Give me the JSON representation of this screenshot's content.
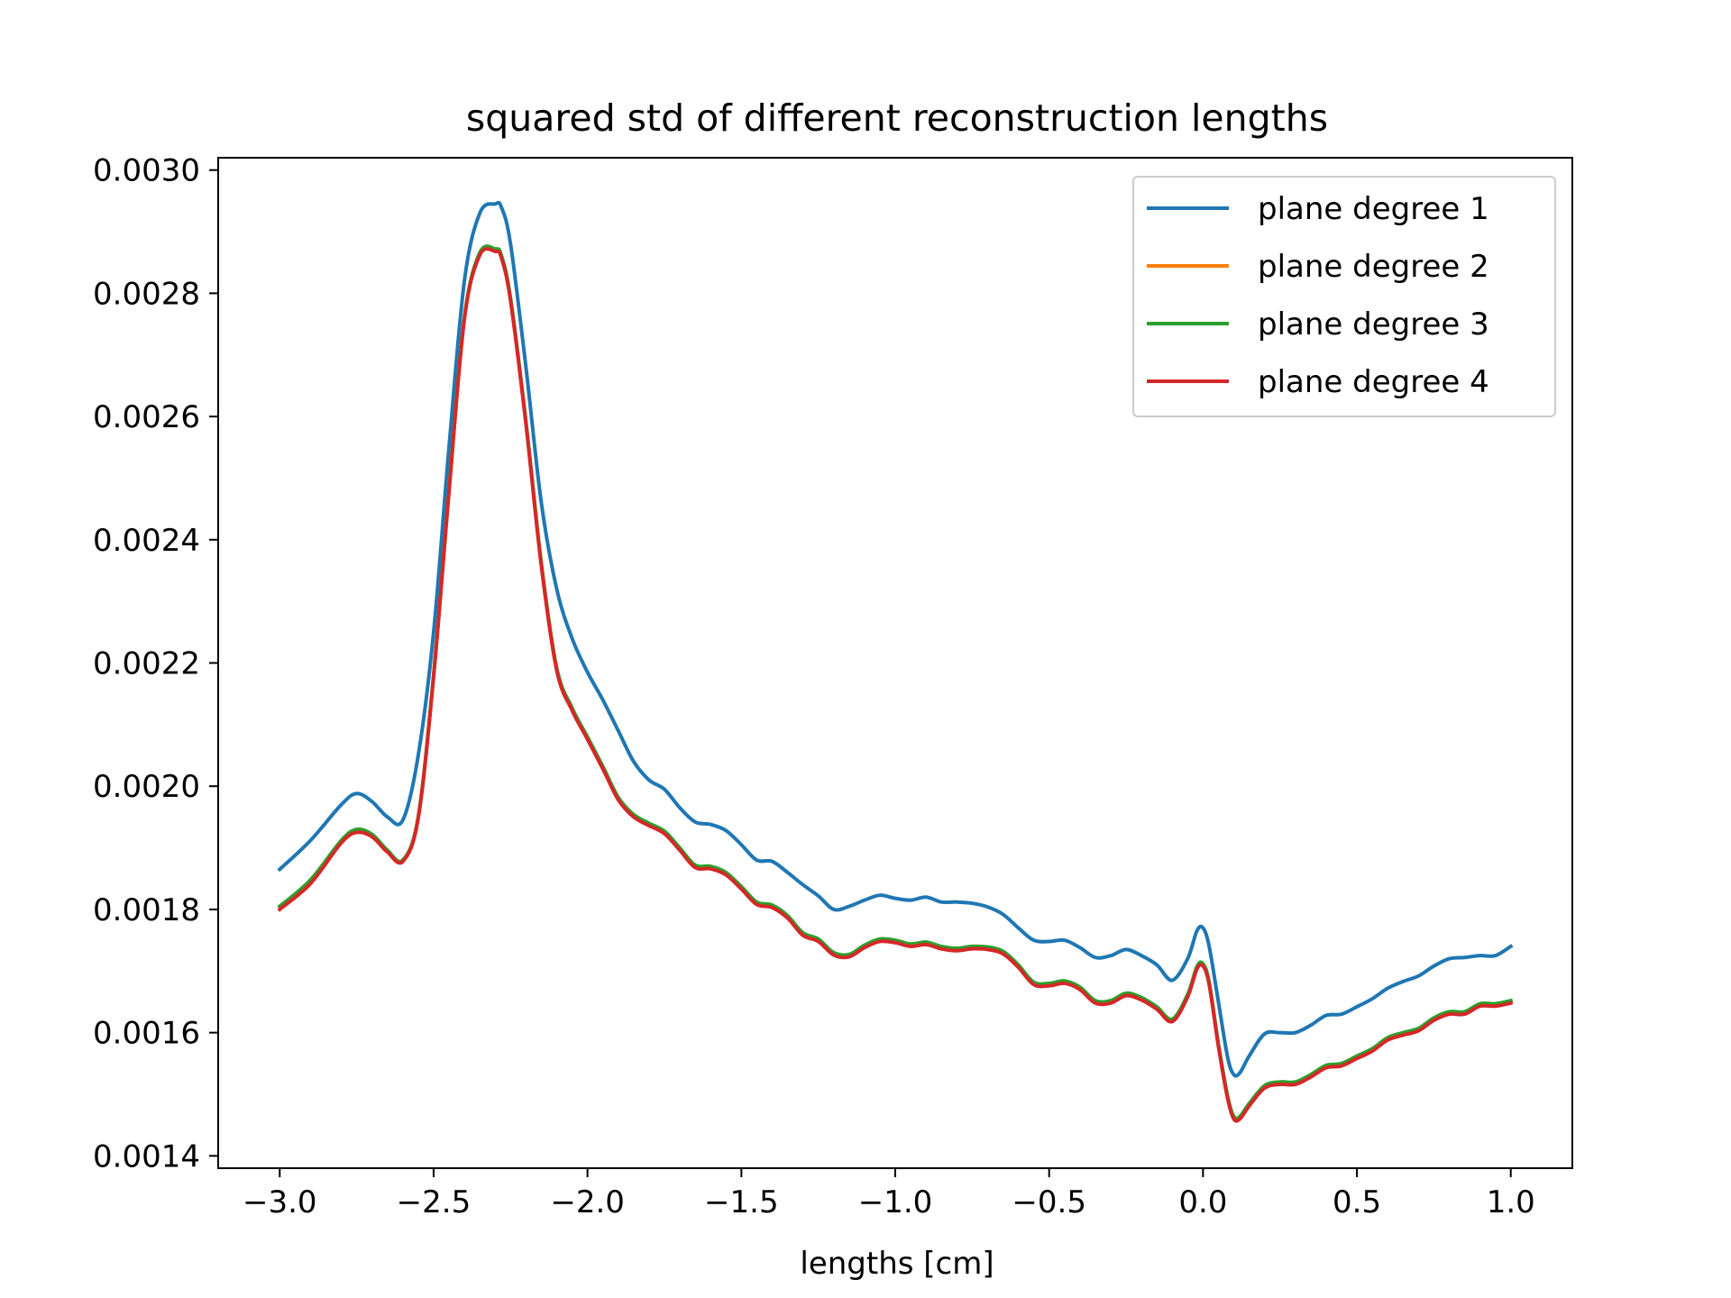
{
  "chart_data": {
    "type": "line",
    "title": "squared std of different reconstruction lengths",
    "xlabel": "lengths [cm]",
    "ylabel": "",
    "xlim": [
      -3.2,
      1.2
    ],
    "ylim": [
      0.00138,
      0.00302
    ],
    "xticks": [
      -3.0,
      -2.5,
      -2.0,
      -1.5,
      -1.0,
      -0.5,
      0.0,
      0.5,
      1.0
    ],
    "xtick_labels": [
      "−3.0",
      "−2.5",
      "−2.0",
      "−1.5",
      "−1.0",
      "−0.5",
      "0.0",
      "0.5",
      "1.0"
    ],
    "yticks": [
      0.0014,
      0.0016,
      0.0018,
      0.002,
      0.0022,
      0.0024,
      0.0026,
      0.0028,
      0.003
    ],
    "ytick_labels": [
      "0.0014",
      "0.0016",
      "0.0018",
      "0.0020",
      "0.0022",
      "0.0024",
      "0.0026",
      "0.0028",
      "0.0030"
    ],
    "grid": false,
    "legend_position": "top-right",
    "x": [
      -3.0,
      -2.9,
      -2.8,
      -2.75,
      -2.7,
      -2.65,
      -2.6,
      -2.55,
      -2.5,
      -2.45,
      -2.4,
      -2.35,
      -2.3,
      -2.28,
      -2.25,
      -2.2,
      -2.15,
      -2.1,
      -2.05,
      -2.0,
      -1.95,
      -1.9,
      -1.85,
      -1.8,
      -1.75,
      -1.7,
      -1.65,
      -1.6,
      -1.55,
      -1.5,
      -1.45,
      -1.4,
      -1.35,
      -1.3,
      -1.25,
      -1.2,
      -1.15,
      -1.1,
      -1.05,
      -1.0,
      -0.95,
      -0.9,
      -0.85,
      -0.8,
      -0.75,
      -0.7,
      -0.65,
      -0.6,
      -0.55,
      -0.5,
      -0.45,
      -0.4,
      -0.35,
      -0.3,
      -0.25,
      -0.2,
      -0.15,
      -0.1,
      -0.05,
      -0.02,
      0.0,
      0.02,
      0.05,
      0.08,
      0.1,
      0.12,
      0.15,
      0.2,
      0.25,
      0.3,
      0.35,
      0.4,
      0.45,
      0.5,
      0.55,
      0.6,
      0.65,
      0.7,
      0.75,
      0.8,
      0.85,
      0.9,
      0.95,
      1.0
    ],
    "series": [
      {
        "name": "plane degree 1",
        "color": "#1f77b4",
        "values": [
          0.001865,
          0.001912,
          0.00197,
          0.001988,
          0.001975,
          0.00195,
          0.001945,
          0.00205,
          0.00225,
          0.00255,
          0.00282,
          0.00293,
          0.002945,
          0.00294,
          0.00288,
          0.00268,
          0.00246,
          0.00232,
          0.00224,
          0.002185,
          0.00214,
          0.00209,
          0.00204,
          0.00201,
          0.001995,
          0.001965,
          0.001942,
          0.001938,
          0.001928,
          0.001905,
          0.00188,
          0.001878,
          0.00186,
          0.00184,
          0.001822,
          0.0018,
          0.001805,
          0.001815,
          0.001823,
          0.001818,
          0.001815,
          0.00182,
          0.001812,
          0.001812,
          0.00181,
          0.001804,
          0.001792,
          0.00177,
          0.00175,
          0.001748,
          0.00175,
          0.001738,
          0.001722,
          0.001725,
          0.001735,
          0.001725,
          0.00171,
          0.001685,
          0.00172,
          0.001765,
          0.00177,
          0.00174,
          0.00165,
          0.00156,
          0.001532,
          0.001535,
          0.001562,
          0.001598,
          0.0016,
          0.0016,
          0.001612,
          0.001628,
          0.00163,
          0.001642,
          0.001655,
          0.001672,
          0.001683,
          0.001692,
          0.001708,
          0.00172,
          0.001722,
          0.001725,
          0.001725,
          0.00174
        ]
      },
      {
        "name": "plane degree 2",
        "color": "#ff7f0e",
        "values": [
          0.001805,
          0.001845,
          0.00191,
          0.001928,
          0.00192,
          0.001895,
          0.00188,
          0.00195,
          0.00218,
          0.00248,
          0.00276,
          0.002865,
          0.00287,
          0.00286,
          0.00279,
          0.00259,
          0.00236,
          0.00219,
          0.002125,
          0.002078,
          0.00203,
          0.00198,
          0.001952,
          0.001938,
          0.001925,
          0.001898,
          0.00187,
          0.001868,
          0.001858,
          0.001835,
          0.00181,
          0.001805,
          0.001788,
          0.00176,
          0.00175,
          0.001728,
          0.001725,
          0.00174,
          0.00175,
          0.001748,
          0.001742,
          0.001745,
          0.001738,
          0.001735,
          0.001738,
          0.001737,
          0.00173,
          0.001708,
          0.00168,
          0.001678,
          0.001682,
          0.001672,
          0.00165,
          0.00165,
          0.001662,
          0.001655,
          0.00164,
          0.00162,
          0.00166,
          0.001705,
          0.00171,
          0.00168,
          0.00158,
          0.001495,
          0.001462,
          0.001462,
          0.001483,
          0.001512,
          0.001518,
          0.001518,
          0.00153,
          0.001545,
          0.001548,
          0.00156,
          0.001572,
          0.00159,
          0.001598,
          0.001605,
          0.001622,
          0.001632,
          0.001632,
          0.001645,
          0.001645,
          0.00165
        ]
      },
      {
        "name": "plane degree 3",
        "color": "#2ca02c",
        "values": [
          0.001805,
          0.001848,
          0.001912,
          0.00193,
          0.001922,
          0.001896,
          0.00188,
          0.00195,
          0.00218,
          0.00248,
          0.00276,
          0.002866,
          0.002872,
          0.002862,
          0.002792,
          0.002592,
          0.002362,
          0.002192,
          0.002127,
          0.00208,
          0.002032,
          0.001982,
          0.001954,
          0.00194,
          0.001927,
          0.0019,
          0.001872,
          0.00187,
          0.00186,
          0.001837,
          0.001812,
          0.001807,
          0.00179,
          0.001762,
          0.001752,
          0.00173,
          0.001727,
          0.001742,
          0.001752,
          0.00175,
          0.001744,
          0.001747,
          0.00174,
          0.001737,
          0.00174,
          0.001739,
          0.001732,
          0.00171,
          0.001682,
          0.00168,
          0.001684,
          0.001674,
          0.001652,
          0.001652,
          0.001664,
          0.001657,
          0.001642,
          0.001622,
          0.001662,
          0.001707,
          0.001712,
          0.001682,
          0.001582,
          0.001497,
          0.001464,
          0.001464,
          0.001485,
          0.001514,
          0.00152,
          0.00152,
          0.001532,
          0.001547,
          0.00155,
          0.001562,
          0.001574,
          0.001592,
          0.0016,
          0.001607,
          0.001624,
          0.001634,
          0.001634,
          0.001647,
          0.001647,
          0.001652
        ]
      },
      {
        "name": "plane degree 4",
        "color": "#d62728",
        "values": [
          0.0018,
          0.001842,
          0.001908,
          0.001925,
          0.001918,
          0.001893,
          0.001878,
          0.001948,
          0.002178,
          0.002478,
          0.002758,
          0.002862,
          0.002868,
          0.002858,
          0.002788,
          0.002588,
          0.002358,
          0.002188,
          0.002123,
          0.002076,
          0.002028,
          0.001978,
          0.00195,
          0.001936,
          0.001923,
          0.001896,
          0.001868,
          0.001866,
          0.001856,
          0.001833,
          0.001808,
          0.001803,
          0.001786,
          0.001758,
          0.001748,
          0.001726,
          0.001723,
          0.001738,
          0.001748,
          0.001746,
          0.00174,
          0.001743,
          0.001736,
          0.001733,
          0.001736,
          0.001735,
          0.001728,
          0.001706,
          0.001678,
          0.001676,
          0.00168,
          0.00167,
          0.001648,
          0.001648,
          0.00166,
          0.001653,
          0.001638,
          0.001618,
          0.001658,
          0.001703,
          0.001708,
          0.001678,
          0.001578,
          0.001493,
          0.00146,
          0.00146,
          0.001481,
          0.00151,
          0.001516,
          0.001516,
          0.001528,
          0.001543,
          0.001546,
          0.001558,
          0.00157,
          0.001588,
          0.001596,
          0.001603,
          0.00162,
          0.00163,
          0.00163,
          0.001643,
          0.001643,
          0.001648
        ]
      }
    ]
  }
}
